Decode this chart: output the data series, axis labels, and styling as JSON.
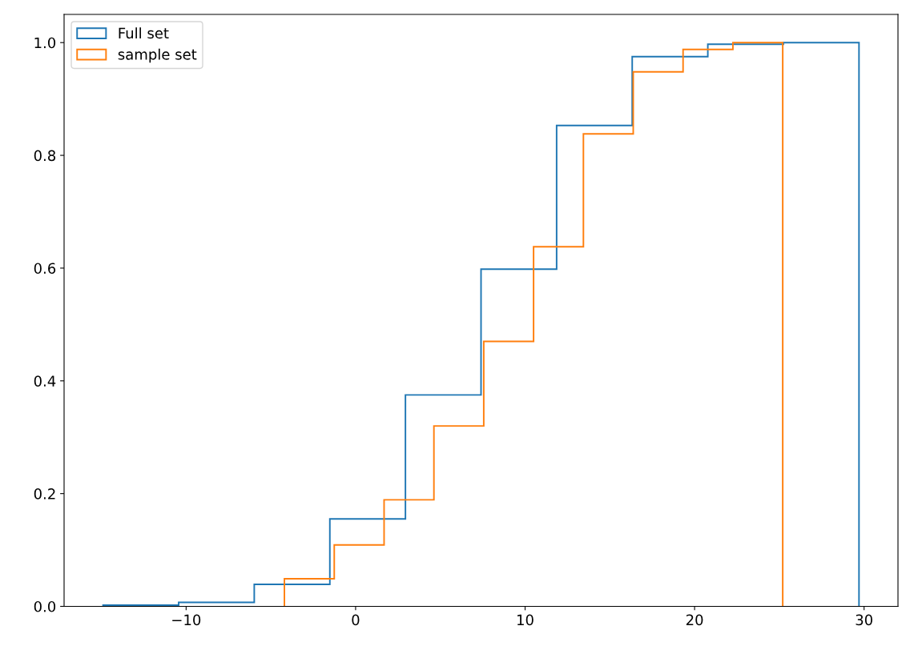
{
  "chart_data": {
    "type": "histogram",
    "xlim": [
      -17.2,
      32.0
    ],
    "ylim": [
      0,
      1.05
    ],
    "xticks": [
      {
        "value": -10,
        "label": "−10"
      },
      0,
      10,
      20,
      30
    ],
    "yticks": [
      {
        "value": 0,
        "label": "0.0"
      },
      0.2,
      0.4,
      0.6,
      0.8,
      {
        "value": 1,
        "label": "1.0"
      }
    ],
    "grid": false,
    "legend": "top left",
    "bins": [
      -14.9,
      -10.44,
      -5.98,
      -1.52,
      2.94,
      7.4,
      11.86,
      16.32,
      20.78,
      25.24,
      29.7
    ],
    "series": [
      {
        "name": "Full set",
        "color": "#1f77b4",
        "values": [
          0.002,
          0.007,
          0.039,
          0.155,
          0.375,
          0.598,
          0.853,
          0.975,
          0.997,
          1.0
        ]
      },
      {
        "name": "sample set",
        "color": "#ff7f0e",
        "bins": [
          -4.2,
          -1.26,
          1.68,
          4.62,
          7.56,
          10.5,
          13.44,
          16.38,
          19.32,
          22.26,
          25.2
        ],
        "values": [
          0.049,
          0.109,
          0.189,
          0.32,
          0.47,
          0.638,
          0.838,
          0.948,
          0.988,
          1.0
        ]
      }
    ]
  }
}
